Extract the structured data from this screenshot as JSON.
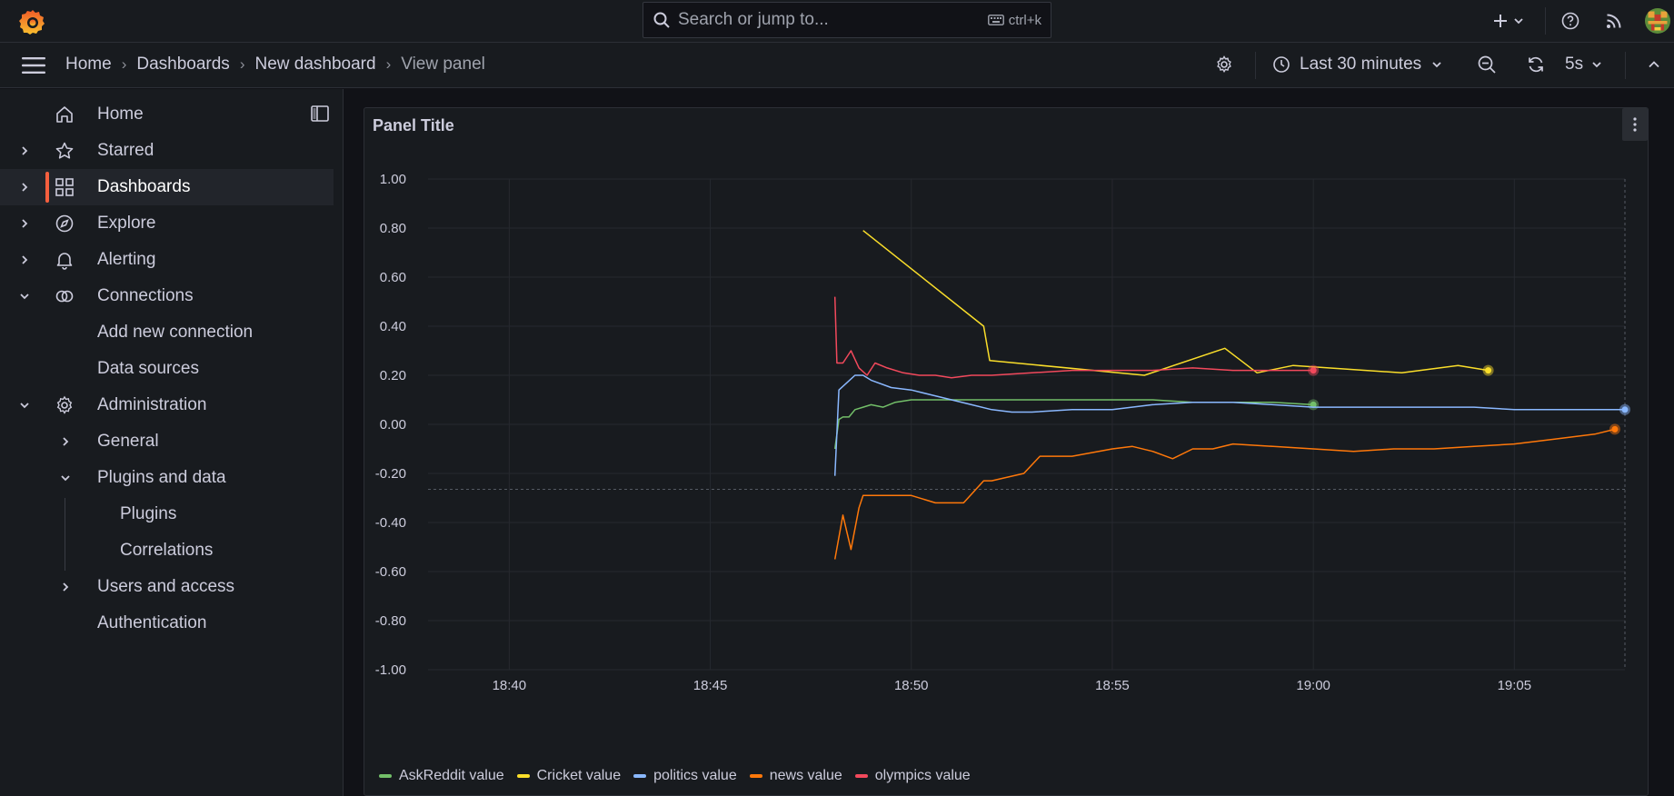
{
  "topbar": {
    "search_placeholder": "Search or jump to...",
    "search_shortcut": "ctrl+k",
    "icons": [
      "grafana-logo-icon",
      "search-icon",
      "keyboard-icon",
      "plus-icon",
      "help-icon",
      "rss-icon",
      "user-avatar"
    ]
  },
  "breadcrumb": {
    "items": [
      "Home",
      "Dashboards",
      "New dashboard"
    ],
    "current": "View panel"
  },
  "toolbar": {
    "time_range": "Last 30 minutes",
    "refresh_interval": "5s"
  },
  "sidebar": {
    "items": [
      {
        "label": "Home",
        "icon": "home-icon"
      },
      {
        "label": "Starred",
        "icon": "star-icon"
      },
      {
        "label": "Dashboards",
        "icon": "apps-icon",
        "active": true
      },
      {
        "label": "Explore",
        "icon": "compass-icon"
      },
      {
        "label": "Alerting",
        "icon": "bell-icon"
      },
      {
        "label": "Connections",
        "icon": "connections-icon",
        "expanded": true
      },
      {
        "label": "Add new connection"
      },
      {
        "label": "Data sources"
      },
      {
        "label": "Administration",
        "icon": "cog-icon",
        "expanded": true
      },
      {
        "label": "General"
      },
      {
        "label": "Plugins and data",
        "expanded": true
      },
      {
        "label": "Plugins"
      },
      {
        "label": "Correlations"
      },
      {
        "label": "Users and access"
      },
      {
        "label": "Authentication"
      }
    ]
  },
  "panel": {
    "title": "Panel Title"
  },
  "chart_data": {
    "type": "line",
    "ylim": [
      -1,
      1
    ],
    "yticks": [
      "1.00",
      "0.80",
      "0.60",
      "0.40",
      "0.20",
      "0.00",
      "-0.20",
      "-0.40",
      "-0.60",
      "-0.80",
      "-1.00"
    ],
    "xticks": [
      "18:40",
      "18:45",
      "18:50",
      "18:55",
      "19:00",
      "19:05"
    ],
    "xlim_minutes": [
      37.98,
      67.75
    ],
    "x_unit": "minutes after 18:00",
    "legend_position": "bottom-left",
    "grid": true,
    "series": [
      {
        "name": "AskReddit value",
        "color": "#73bf69",
        "x": [
          48.1,
          48.2,
          48.3,
          48.45,
          48.6,
          48.8,
          49.0,
          49.3,
          49.6,
          50.0,
          50.5,
          51.0,
          52.0,
          53.0,
          54.0,
          55.0,
          56.0,
          57.0,
          58.0,
          59.0,
          60.0
        ],
        "y": [
          -0.1,
          0.02,
          0.03,
          0.03,
          0.06,
          0.07,
          0.08,
          0.07,
          0.09,
          0.1,
          0.1,
          0.1,
          0.1,
          0.1,
          0.1,
          0.1,
          0.1,
          0.09,
          0.09,
          0.09,
          0.08
        ]
      },
      {
        "name": "Cricket value",
        "color": "#fade2a",
        "x": [
          48.8,
          51.8,
          51.95,
          55.8,
          57.8,
          58.6,
          59.5,
          62.2,
          63.6,
          64.35
        ],
        "y": [
          0.79,
          0.4,
          0.26,
          0.2,
          0.31,
          0.21,
          0.24,
          0.21,
          0.24,
          0.22
        ]
      },
      {
        "name": "politics value",
        "color": "#8ab8ff",
        "x": [
          48.1,
          48.2,
          48.4,
          48.6,
          48.8,
          49.0,
          49.5,
          50.0,
          50.5,
          51.0,
          51.5,
          52.0,
          52.5,
          53.0,
          54.0,
          55.0,
          56.0,
          57.0,
          58.0,
          59.0,
          60.0,
          61.0,
          62.0,
          63.0,
          64.0,
          65.0,
          66.0,
          67.0,
          67.75
        ],
        "y": [
          -0.21,
          0.14,
          0.17,
          0.2,
          0.2,
          0.18,
          0.15,
          0.14,
          0.12,
          0.1,
          0.08,
          0.06,
          0.05,
          0.05,
          0.06,
          0.06,
          0.08,
          0.09,
          0.09,
          0.08,
          0.07,
          0.07,
          0.07,
          0.07,
          0.07,
          0.06,
          0.06,
          0.06,
          0.06
        ]
      },
      {
        "name": "news value",
        "color": "#ff780a",
        "x": [
          48.1,
          48.3,
          48.5,
          48.7,
          48.8,
          49.1,
          50.0,
          50.6,
          51.3,
          51.8,
          52.0,
          52.8,
          53.2,
          54.0,
          55.0,
          55.5,
          56.0,
          56.5,
          57.0,
          57.5,
          58.0,
          59.0,
          60.0,
          61.0,
          62.0,
          63.0,
          64.0,
          65.0,
          66.0,
          66.5,
          67.0,
          67.5
        ],
        "y": [
          -0.55,
          -0.37,
          -0.51,
          -0.34,
          -0.29,
          -0.29,
          -0.29,
          -0.32,
          -0.32,
          -0.23,
          -0.23,
          -0.2,
          -0.13,
          -0.13,
          -0.1,
          -0.09,
          -0.11,
          -0.14,
          -0.1,
          -0.1,
          -0.08,
          -0.09,
          -0.1,
          -0.11,
          -0.1,
          -0.1,
          -0.09,
          -0.08,
          -0.06,
          -0.05,
          -0.04,
          -0.02
        ]
      },
      {
        "name": "olympics value",
        "color": "#f2495c",
        "x": [
          48.1,
          48.15,
          48.3,
          48.5,
          48.7,
          48.9,
          49.1,
          49.4,
          49.8,
          50.2,
          50.6,
          51.0,
          51.5,
          52.0,
          53.0,
          54.0,
          55.0,
          56.0,
          57.0,
          58.0,
          59.0,
          60.0
        ],
        "y": [
          0.52,
          0.25,
          0.25,
          0.3,
          0.23,
          0.2,
          0.25,
          0.23,
          0.21,
          0.2,
          0.2,
          0.19,
          0.2,
          0.2,
          0.21,
          0.22,
          0.22,
          0.22,
          0.23,
          0.22,
          0.22,
          0.22
        ]
      }
    ]
  }
}
